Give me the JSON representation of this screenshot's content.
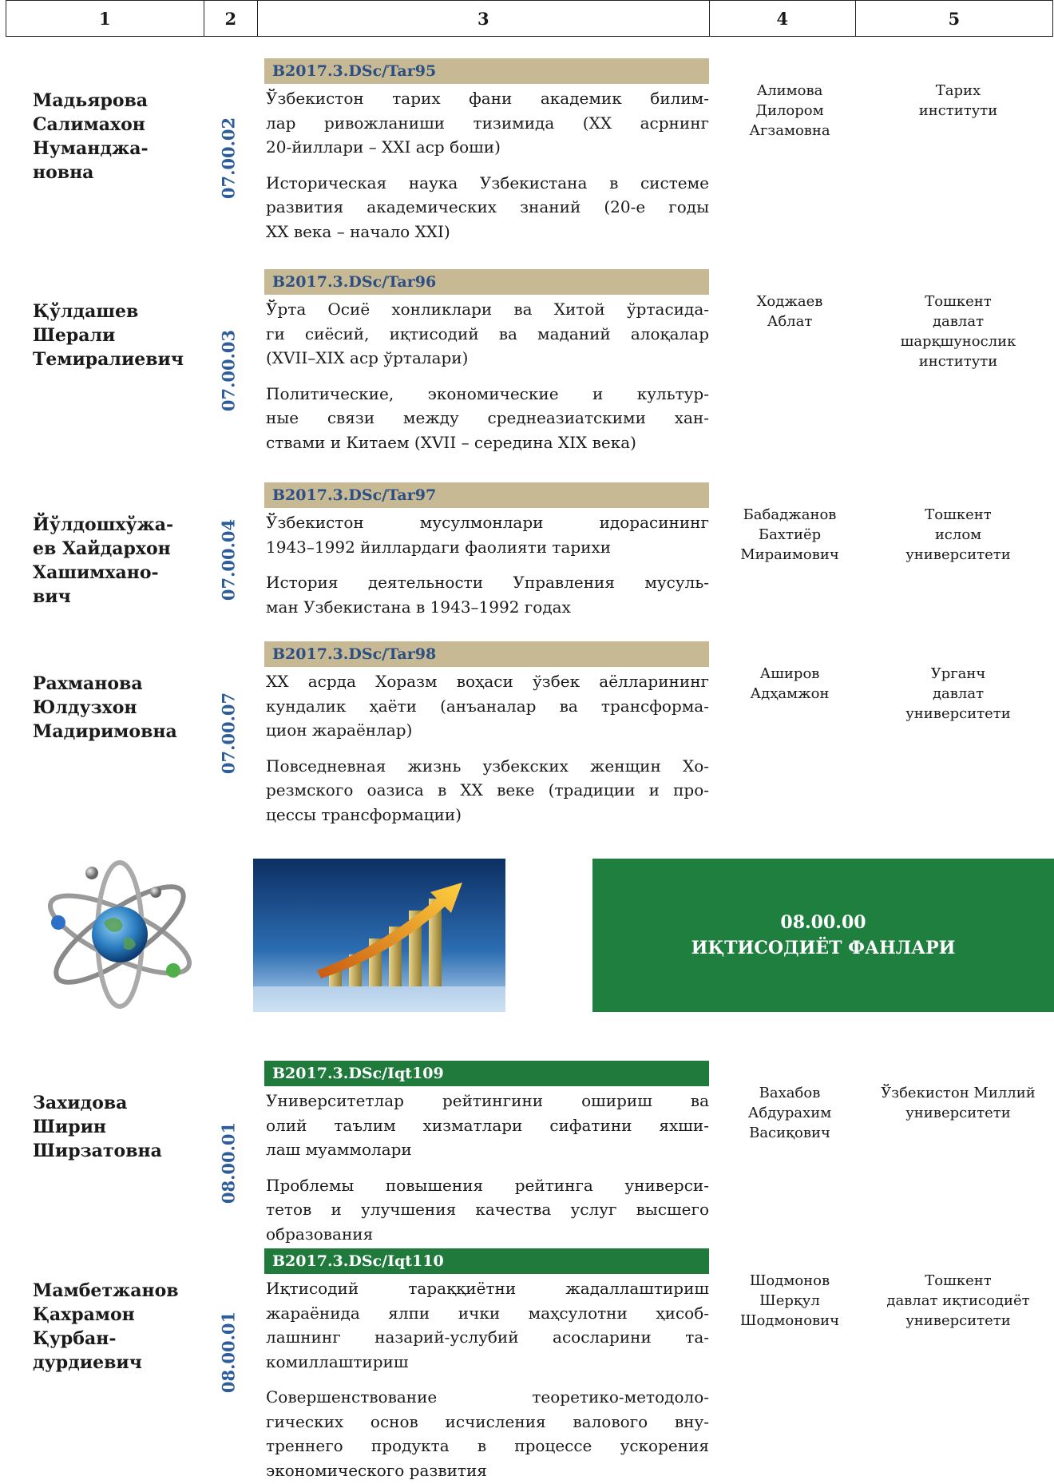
{
  "header": [
    "1",
    "2",
    "3",
    "4",
    "5"
  ],
  "rows": [
    {
      "name": [
        "Мадьярова",
        "Салимахон",
        "Нуманджа-",
        "новна"
      ],
      "code": "07.00.02",
      "reg": "B2017.3.DSc/Tar95",
      "color": "#c6b993",
      "title_uz": [
        "Ўзбекистон тарих фани академик билим-",
        "лар ривожланиши тизимида (XX асрнинг",
        "20-йиллари – XXI аср боши)"
      ],
      "title_ru": [
        "Историческая наука Узбекистана в системе",
        "развития академических знаний (20-е годы",
        "XX века – начало XXI)"
      ],
      "supervisor": [
        "Алимова",
        "Дилором",
        "Агзамовна"
      ],
      "institution": [
        "Тарих",
        "институти"
      ]
    },
    {
      "name": [
        "Қўлдашев",
        "Шерали",
        "Темиралиевич"
      ],
      "code": "07.00.03",
      "reg": "B2017.3.DSc/Tar96",
      "color": "#c6b993",
      "title_uz": [
        "Ўрта Осиё хонликлари ва Хитой ўртасида-",
        "ги сиёсий, иқтисодий ва маданий алоқалар",
        "(XVII–XIX аср ўрталари)"
      ],
      "title_ru": [
        "Политические, экономические и культур-",
        "ные связи между среднеазиатскими хан-",
        "ствами и Китаем (XVII – середина XIX века)"
      ],
      "supervisor": [
        "Ходжаев",
        "Аблат"
      ],
      "institution": [
        "Тошкент",
        "давлат",
        "шарқшунослик",
        "институти"
      ]
    },
    {
      "name": [
        "Йўлдошхўжа-",
        "ев Хайдархон",
        "Хашимхано-",
        "вич"
      ],
      "code": "07.00.04",
      "reg": "B2017.3.DSc/Tar97",
      "color": "#c6b993",
      "title_uz": [
        "Ўзбекистон мусулмонлари идорасининг",
        "1943–1992 йиллардаги фаолияти тарихи"
      ],
      "title_ru": [
        "История деятельности Управления мусуль-",
        "ман Узбекистана в 1943–1992 годах"
      ],
      "supervisor": [
        "Бабаджанов",
        "Бахтиёр",
        "Мираимович"
      ],
      "institution": [
        "Тошкент",
        "ислом",
        "университети"
      ]
    },
    {
      "name": [
        "Рахманова",
        "Юлдузхон",
        "Мадиримовна"
      ],
      "code": "07.00.07",
      "reg": "B2017.3.DSc/Tar98",
      "color": "#c6b993",
      "title_uz": [
        "XX асрда Хоразм воҳаси ўзбек аёлларининг",
        "кундалик ҳаёти (анъаналар ва трансформа-",
        "цион жараёнлар)"
      ],
      "title_ru": [
        "Повседневная жизнь узбекских женщин Хо-",
        "резмского оазиса в XX веке (традиции и про-",
        "цессы трансформации)"
      ],
      "supervisor": [
        "Аширов",
        "Адҳамжон"
      ],
      "institution": [
        "Урганч",
        "давлат",
        "университети"
      ]
    },
    {
      "name": [
        "Захидова",
        "Ширин",
        "Ширзатовна"
      ],
      "code": "08.00.01",
      "reg": "B2017.3.DSc/Iqt109",
      "color": "#1f7a3c",
      "title_uz": [
        "Университетлар рейтингини ошириш ва",
        "олий таълим хизматлари сифатини яхши-",
        "лаш муаммолари"
      ],
      "title_ru": [
        "Проблемы повышения рейтинга универси-",
        "тетов и улучшения качества услуг высшего",
        "образования"
      ],
      "supervisor": [
        "Вахабов",
        "Абдурахим",
        "Васиқович"
      ],
      "institution": [
        "Ўзбекистон Миллий",
        "университети"
      ]
    },
    {
      "name": [
        "Мамбетжанов",
        "Қахрамон",
        "Қурбан-",
        "дурдиевич"
      ],
      "code": "08.00.01",
      "reg": "B2017.3.DSc/Iqt110",
      "color": "#1f7a3c",
      "title_uz": [
        "Иқтисодий тараққиётни жадаллаштириш",
        "жараёнида ялпи ички маҳсулотни ҳисоб-",
        "лашнинг назарий-услубий асосларини та-",
        "комиллаштириш"
      ],
      "title_ru": [
        "Совершенствование теоретико-методоло-",
        "гических основ исчисления валового вну-",
        "треннего продукта в процессе ускорения",
        "экономического развития"
      ],
      "supervisor": [
        "Шодмонов",
        "Шерқул",
        "Шодмонович"
      ],
      "institution": [
        "Тошкент",
        "давлат иқтисодиёт",
        "университети"
      ]
    }
  ],
  "section": {
    "code": "08.00.00",
    "title": "ИҚТИСОДИЁТ ФАНЛАРИ"
  }
}
